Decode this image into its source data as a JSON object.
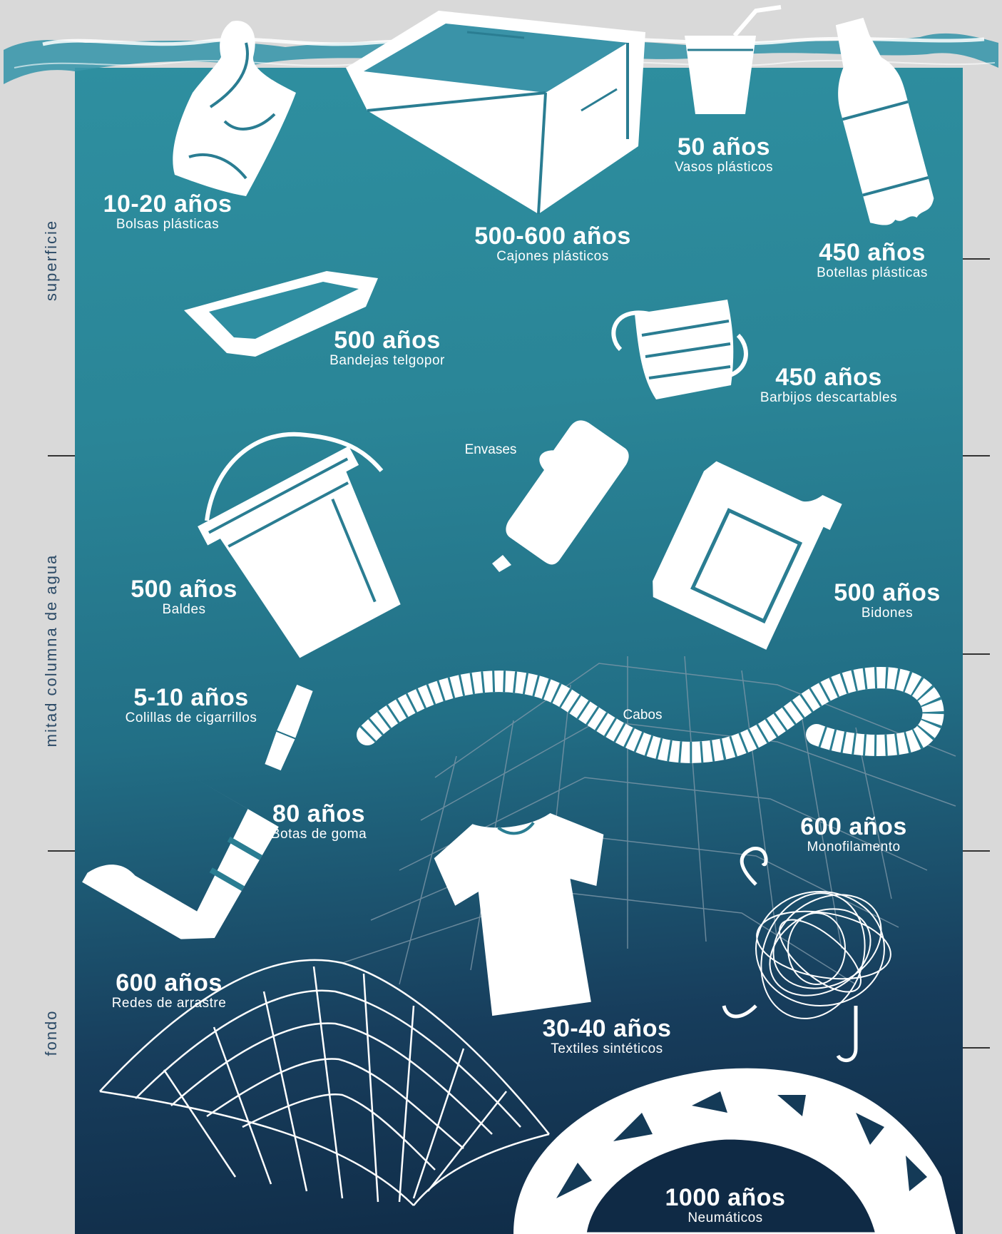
{
  "zones": {
    "surface": "superficie",
    "midwater": "mitad columna de agua",
    "bottom": "fondo"
  },
  "items": {
    "bags": {
      "years": "10-20 años",
      "name": "Bolsas plásticas",
      "icon": "plastic-bag"
    },
    "crates": {
      "years": "500-600 años",
      "name": "Cajones plásticos",
      "icon": "plastic-crate"
    },
    "cups": {
      "years": "50 años",
      "name": "Vasos plásticos",
      "icon": "cup-with-straw"
    },
    "bottles": {
      "years": "450 años",
      "name": "Botellas plásticas",
      "icon": "plastic-bottle"
    },
    "trays": {
      "years": "500 años",
      "name": "Bandejas telgopor",
      "icon": "foam-tray"
    },
    "masks": {
      "years": "450 años",
      "name": "Barbijos descartables",
      "icon": "face-mask"
    },
    "containers": {
      "name": "Envases",
      "icon": "detergent-container"
    },
    "buckets": {
      "years": "500 años",
      "name": "Baldes",
      "icon": "bucket"
    },
    "jerrycans": {
      "years": "500 años",
      "name": "Bidones",
      "icon": "jerrycan"
    },
    "cigarettes": {
      "years": "5-10 años",
      "name": "Colillas de cigarrillos",
      "icon": "cigarette-butt"
    },
    "ropes": {
      "name": "Cabos",
      "icon": "rope"
    },
    "boots": {
      "years": "80 años",
      "name": "Botas de goma",
      "icon": "rubber-boot"
    },
    "monofilament": {
      "years": "600 años",
      "name": "Monofilamento",
      "icon": "tangled-line-hook"
    },
    "trawl": {
      "years": "600 años",
      "name": "Redes de arrastre",
      "icon": "trawl-net"
    },
    "textiles": {
      "years": "30-40 años",
      "name": "Textiles sintéticos",
      "icon": "t-shirt"
    },
    "tires": {
      "years": "1000 años",
      "name": "Neumáticos",
      "icon": "tire"
    }
  },
  "colors": {
    "background": "#d9d9d9",
    "water_top": "#2e8fa0",
    "water_bottom": "#0f2a45",
    "icon": "#ffffff",
    "zone_text": "#2b4a66"
  }
}
